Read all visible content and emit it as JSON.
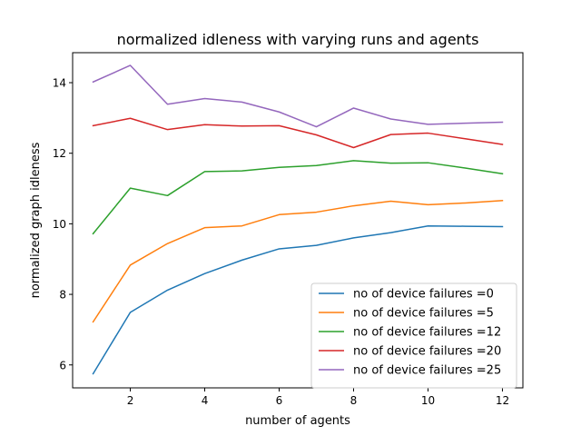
{
  "chart_data": {
    "type": "line",
    "title": "normalized idleness with varying runs and agents",
    "xlabel": "number of agents",
    "ylabel": "normalized graph idleness",
    "xlim": [
      0.45,
      12.55
    ],
    "ylim": [
      5.35,
      14.85
    ],
    "xticks": [
      2,
      4,
      6,
      8,
      10,
      12
    ],
    "yticks": [
      6,
      8,
      10,
      12,
      14
    ],
    "grid": false,
    "legend_position": "lower-right",
    "x": [
      1,
      2,
      3,
      4,
      5,
      6,
      7,
      8,
      9,
      10,
      11,
      12
    ],
    "series": [
      {
        "name": "no of device failures =0",
        "color": "#1f77b4",
        "values": [
          5.75,
          7.49,
          8.12,
          8.59,
          8.97,
          9.29,
          9.39,
          9.6,
          9.75,
          9.94,
          9.93,
          9.92
        ]
      },
      {
        "name": "no of device failures =5",
        "color": "#ff7f0e",
        "values": [
          7.22,
          8.83,
          9.44,
          9.89,
          9.94,
          10.26,
          10.33,
          10.51,
          10.64,
          10.54,
          10.59,
          10.66
        ]
      },
      {
        "name": "no of device failures =12",
        "color": "#2ca02c",
        "values": [
          9.72,
          11.01,
          10.8,
          11.48,
          11.5,
          11.6,
          11.65,
          11.79,
          11.72,
          11.73,
          11.58,
          11.42
        ]
      },
      {
        "name": "no of device failures =20",
        "color": "#d62728",
        "values": [
          12.78,
          12.99,
          12.67,
          12.81,
          12.77,
          12.78,
          12.52,
          12.16,
          12.53,
          12.57,
          12.41,
          12.25
        ]
      },
      {
        "name": "no of device failures =25",
        "color": "#9467bd",
        "values": [
          14.02,
          14.49,
          13.39,
          13.55,
          13.45,
          13.17,
          12.75,
          13.28,
          12.97,
          12.82,
          12.85,
          12.88
        ]
      }
    ]
  }
}
